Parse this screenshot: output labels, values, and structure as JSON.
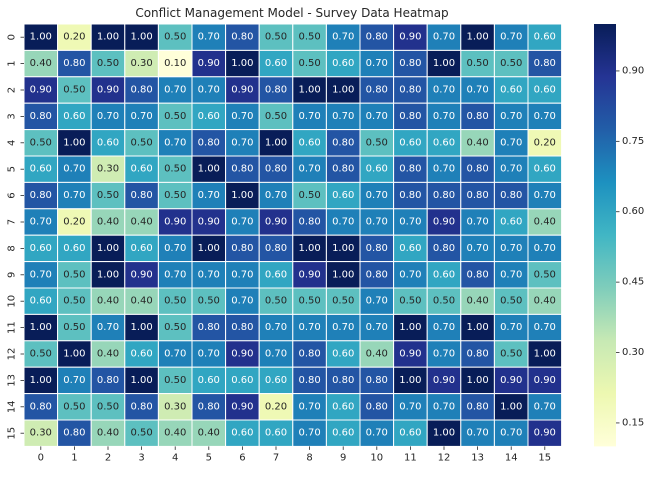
{
  "chart_data": {
    "type": "heatmap",
    "title": "Conflict Management Model - Survey Data Heatmap",
    "x_ticks": [
      "0",
      "1",
      "2",
      "3",
      "4",
      "5",
      "6",
      "7",
      "8",
      "9",
      "10",
      "11",
      "12",
      "13",
      "14",
      "15"
    ],
    "y_ticks": [
      "0",
      "1",
      "2",
      "3",
      "4",
      "5",
      "6",
      "7",
      "8",
      "9",
      "10",
      "11",
      "12",
      "13",
      "14",
      "15"
    ],
    "colorbar_ticks": [
      0.15,
      0.3,
      0.45,
      0.6,
      0.75,
      0.9
    ],
    "colorbar_tick_labels": [
      "0.15",
      "0.30",
      "0.45",
      "0.60",
      "0.75",
      "0.90"
    ],
    "vmin": 0.1,
    "vmax": 1.0,
    "colormap": "YlGnBu",
    "annotation_format": "0.00",
    "values": [
      [
        1.0,
        0.2,
        1.0,
        1.0,
        0.5,
        0.7,
        0.8,
        0.5,
        0.5,
        0.7,
        0.8,
        0.9,
        0.7,
        1.0,
        0.7,
        0.6
      ],
      [
        0.4,
        0.8,
        0.5,
        0.3,
        0.1,
        0.9,
        1.0,
        0.6,
        0.5,
        0.6,
        0.7,
        0.8,
        1.0,
        0.5,
        0.5,
        0.8
      ],
      [
        0.9,
        0.5,
        0.9,
        0.8,
        0.7,
        0.7,
        0.9,
        0.8,
        1.0,
        1.0,
        0.8,
        0.8,
        0.7,
        0.7,
        0.6,
        0.6
      ],
      [
        0.8,
        0.6,
        0.7,
        0.7,
        0.5,
        0.6,
        0.7,
        0.5,
        0.7,
        0.7,
        0.7,
        0.8,
        0.7,
        0.8,
        0.7,
        0.7
      ],
      [
        0.5,
        1.0,
        0.6,
        0.5,
        0.7,
        0.8,
        0.7,
        1.0,
        0.6,
        0.8,
        0.5,
        0.6,
        0.6,
        0.4,
        0.7,
        0.2
      ],
      [
        0.6,
        0.7,
        0.3,
        0.6,
        0.5,
        1.0,
        0.8,
        0.8,
        0.7,
        0.8,
        0.6,
        0.8,
        0.7,
        0.8,
        0.7,
        0.6
      ],
      [
        0.8,
        0.7,
        0.5,
        0.8,
        0.5,
        0.7,
        1.0,
        0.7,
        0.5,
        0.6,
        0.7,
        0.8,
        0.8,
        0.8,
        0.8,
        0.7
      ],
      [
        0.7,
        0.2,
        0.4,
        0.4,
        0.9,
        0.9,
        0.7,
        0.9,
        0.8,
        0.7,
        0.7,
        0.7,
        0.9,
        0.7,
        0.6,
        0.4
      ],
      [
        0.6,
        0.6,
        1.0,
        0.6,
        0.7,
        1.0,
        0.8,
        0.8,
        1.0,
        1.0,
        0.8,
        0.6,
        0.8,
        0.7,
        0.7,
        0.7
      ],
      [
        0.7,
        0.5,
        1.0,
        0.9,
        0.7,
        0.7,
        0.7,
        0.6,
        0.9,
        1.0,
        0.8,
        0.7,
        0.6,
        0.8,
        0.7,
        0.5
      ],
      [
        0.6,
        0.5,
        0.4,
        0.4,
        0.5,
        0.5,
        0.7,
        0.5,
        0.5,
        0.5,
        0.7,
        0.5,
        0.5,
        0.4,
        0.5,
        0.4
      ],
      [
        1.0,
        0.5,
        0.7,
        1.0,
        0.5,
        0.8,
        0.8,
        0.7,
        0.7,
        0.7,
        0.7,
        1.0,
        0.7,
        1.0,
        0.7,
        0.7
      ],
      [
        0.5,
        1.0,
        0.4,
        0.6,
        0.7,
        0.7,
        0.9,
        0.7,
        0.8,
        0.6,
        0.4,
        0.9,
        0.7,
        0.8,
        0.5,
        1.0
      ],
      [
        1.0,
        0.7,
        0.8,
        1.0,
        0.5,
        0.6,
        0.6,
        0.6,
        0.8,
        0.8,
        0.8,
        1.0,
        0.9,
        1.0,
        0.9,
        0.9
      ],
      [
        0.8,
        0.5,
        0.5,
        0.8,
        0.3,
        0.8,
        0.9,
        0.2,
        0.7,
        0.6,
        0.8,
        0.7,
        0.7,
        0.8,
        1.0,
        0.7
      ],
      [
        0.3,
        0.8,
        0.4,
        0.5,
        0.4,
        0.4,
        0.6,
        0.6,
        0.7,
        0.6,
        0.7,
        0.6,
        1.0,
        0.7,
        0.7,
        0.9
      ]
    ]
  }
}
